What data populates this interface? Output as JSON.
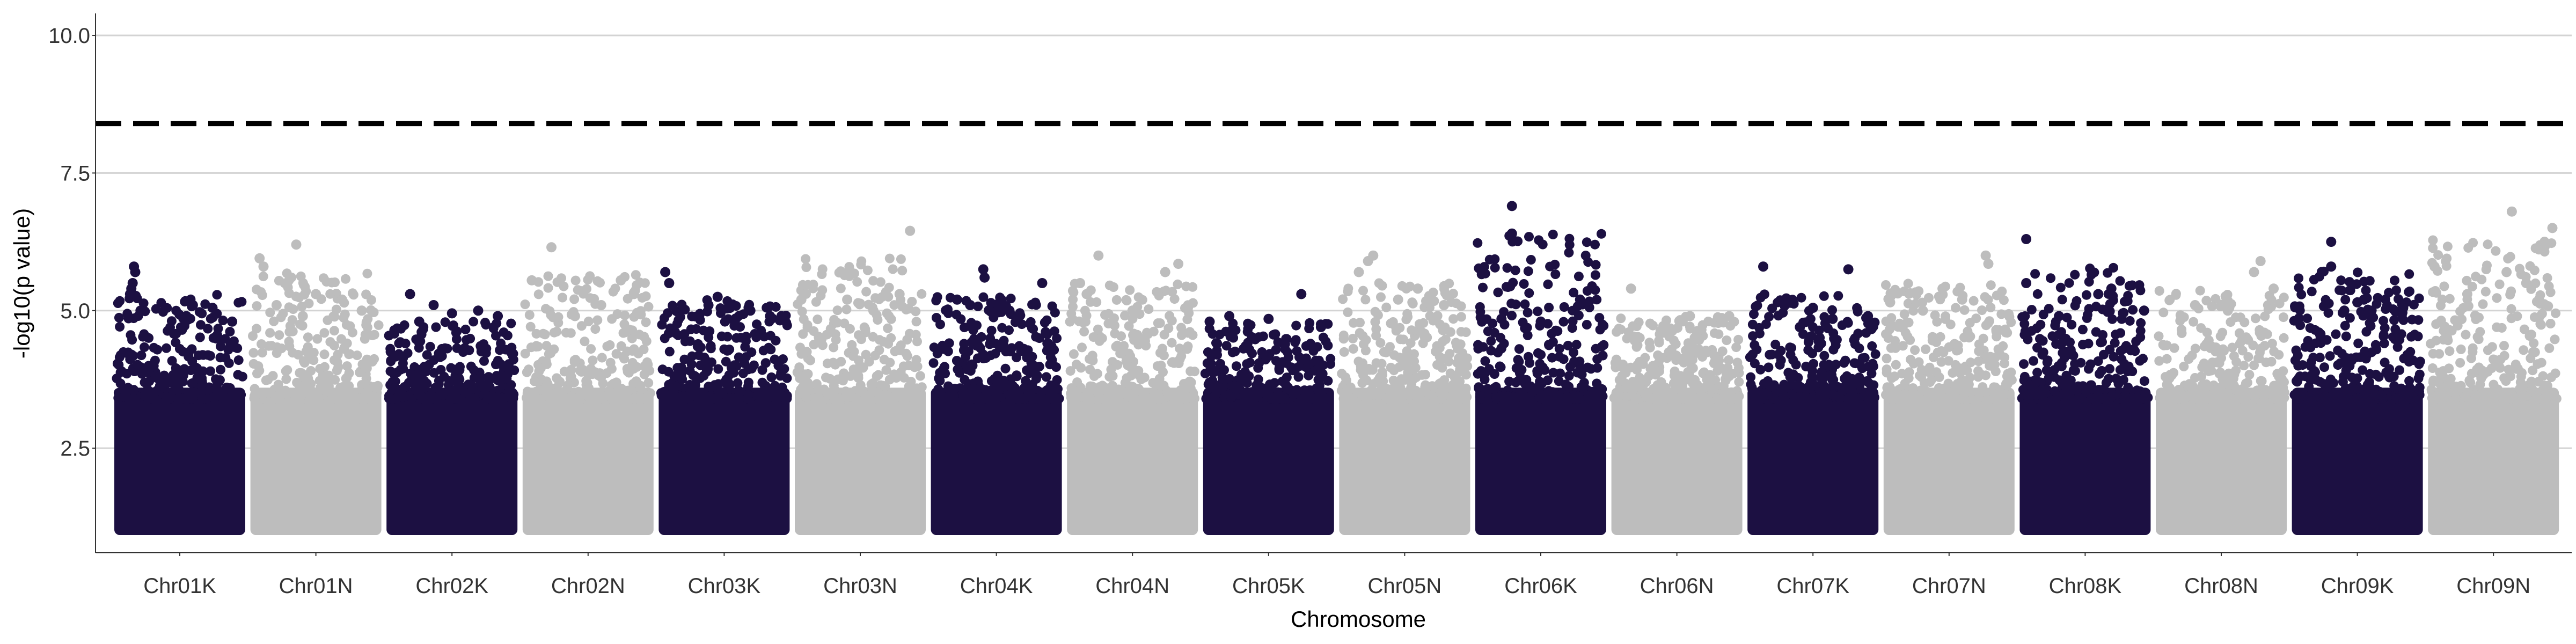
{
  "chart_data": {
    "type": "scatter",
    "subtype": "manhattan",
    "title": "",
    "xlabel": "Chromosome",
    "ylabel": "-log10(p value)",
    "ylim": [
      0.6,
      10.4
    ],
    "y_ticks": [
      2.5,
      5.0,
      7.5,
      10.0
    ],
    "y_tick_labels": [
      "2.5",
      "5.0",
      "7.5",
      "10.0"
    ],
    "grid": "horizontal major lines",
    "legend": "none",
    "threshold": 8.4,
    "threshold_style": "dashed",
    "colors": {
      "dark": "#1c1042",
      "light": "#bdbdbd",
      "threshold": "#000000",
      "grid": "#d3d3d3",
      "axis": "#333333"
    },
    "categories": [
      "Chr01K",
      "Chr01N",
      "Chr02K",
      "Chr02N",
      "Chr03K",
      "Chr03N",
      "Chr04K",
      "Chr04N",
      "Chr05K",
      "Chr05N",
      "Chr06K",
      "Chr06N",
      "Chr07K",
      "Chr07N",
      "Chr08K",
      "Chr08N",
      "Chr09K",
      "Chr09N"
    ],
    "series": [
      {
        "category": "Chr01K",
        "color": "dark",
        "max": 5.8,
        "top_points": [
          [
            0.15,
            5.8
          ],
          [
            0.16,
            5.7
          ],
          [
            0.14,
            5.5
          ],
          [
            0.13,
            5.4
          ],
          [
            0.12,
            5.3
          ],
          [
            0.6,
            5.1
          ],
          [
            0.75,
            5.05
          ],
          [
            0.2,
            5.0
          ],
          [
            0.55,
            4.9
          ],
          [
            0.9,
            4.8
          ]
        ]
      },
      {
        "category": "Chr01N",
        "color": "light",
        "max": 6.2,
        "top_points": [
          [
            0.35,
            6.2
          ],
          [
            0.07,
            5.95
          ],
          [
            0.1,
            5.8
          ],
          [
            0.5,
            5.3
          ],
          [
            0.7,
            5.2
          ],
          [
            0.2,
            5.1
          ],
          [
            0.85,
            5.0
          ],
          [
            0.4,
            4.9
          ]
        ]
      },
      {
        "category": "Chr02K",
        "color": "dark",
        "max": 5.3,
        "top_points": [
          [
            0.18,
            5.3
          ],
          [
            0.36,
            5.1
          ],
          [
            0.7,
            5.0
          ],
          [
            0.5,
            4.95
          ],
          [
            0.85,
            4.9
          ],
          [
            0.25,
            4.8
          ]
        ]
      },
      {
        "category": "Chr02N",
        "color": "light",
        "max": 6.15,
        "top_points": [
          [
            0.22,
            6.15
          ],
          [
            0.07,
            5.55
          ],
          [
            0.75,
            5.55
          ],
          [
            0.85,
            5.3
          ],
          [
            0.6,
            5.1
          ],
          [
            0.4,
            4.9
          ]
        ]
      },
      {
        "category": "Chr03K",
        "color": "dark",
        "max": 5.7,
        "top_points": [
          [
            0.05,
            5.7
          ],
          [
            0.08,
            5.5
          ],
          [
            0.45,
            5.25
          ],
          [
            0.38,
            5.1
          ],
          [
            0.7,
            5.0
          ],
          [
            0.85,
            4.9
          ]
        ]
      },
      {
        "category": "Chr03N",
        "color": "light",
        "max": 6.45,
        "top_points": [
          [
            0.88,
            6.45
          ],
          [
            0.05,
            5.2
          ],
          [
            0.8,
            5.3
          ],
          [
            0.4,
            5.2
          ],
          [
            0.6,
            5.0
          ]
        ]
      },
      {
        "category": "Chr04K",
        "color": "dark",
        "max": 5.75,
        "top_points": [
          [
            0.4,
            5.75
          ],
          [
            0.41,
            5.6
          ],
          [
            0.85,
            5.5
          ],
          [
            0.2,
            5.2
          ],
          [
            0.3,
            5.1
          ],
          [
            0.6,
            5.0
          ]
        ]
      },
      {
        "category": "Chr04N",
        "color": "light",
        "max": 6.0,
        "top_points": [
          [
            0.24,
            6.0
          ],
          [
            0.85,
            5.85
          ],
          [
            0.75,
            5.7
          ],
          [
            0.1,
            5.5
          ],
          [
            0.15,
            5.3
          ],
          [
            0.5,
            5.0
          ]
        ]
      },
      {
        "category": "Chr05K",
        "color": "dark",
        "max": 5.3,
        "top_points": [
          [
            0.75,
            5.3
          ],
          [
            0.2,
            4.9
          ],
          [
            0.5,
            4.85
          ],
          [
            0.05,
            4.8
          ],
          [
            0.9,
            4.7
          ]
        ]
      },
      {
        "category": "Chr05N",
        "color": "light",
        "max": 6.0,
        "top_points": [
          [
            0.26,
            6.0
          ],
          [
            0.22,
            5.9
          ],
          [
            0.15,
            5.7
          ],
          [
            0.6,
            5.4
          ],
          [
            0.45,
            5.2
          ],
          [
            0.8,
            5.1
          ]
        ]
      },
      {
        "category": "Chr06K",
        "color": "dark",
        "max": 6.9,
        "top_points": [
          [
            0.28,
            6.9
          ],
          [
            0.28,
            6.4
          ],
          [
            0.8,
            5.2
          ],
          [
            0.2,
            4.85
          ],
          [
            0.5,
            4.8
          ]
        ]
      },
      {
        "category": "Chr06N",
        "color": "light",
        "max": 5.4,
        "top_points": [
          [
            0.15,
            5.4
          ],
          [
            0.6,
            4.9
          ],
          [
            0.9,
            4.9
          ],
          [
            0.4,
            4.6
          ]
        ]
      },
      {
        "category": "Chr07K",
        "color": "dark",
        "max": 5.8,
        "top_points": [
          [
            0.12,
            5.8
          ],
          [
            0.77,
            5.75
          ],
          [
            0.5,
            5.05
          ],
          [
            0.92,
            4.9
          ],
          [
            0.65,
            4.85
          ],
          [
            0.4,
            4.7
          ]
        ]
      },
      {
        "category": "Chr07N",
        "color": "light",
        "max": 6.0,
        "top_points": [
          [
            0.78,
            6.0
          ],
          [
            0.8,
            5.85
          ],
          [
            0.05,
            5.15
          ],
          [
            0.45,
            5.4
          ],
          [
            0.6,
            5.2
          ],
          [
            0.3,
            5.0
          ]
        ]
      },
      {
        "category": "Chr08K",
        "color": "dark",
        "max": 6.3,
        "top_points": [
          [
            0.05,
            6.3
          ],
          [
            0.05,
            5.5
          ],
          [
            0.7,
            5.4
          ],
          [
            0.6,
            5.3
          ],
          [
            0.95,
            5.0
          ],
          [
            0.3,
            4.9
          ]
        ]
      },
      {
        "category": "Chr08N",
        "color": "light",
        "max": 5.9,
        "top_points": [
          [
            0.8,
            5.9
          ],
          [
            0.75,
            5.7
          ],
          [
            0.9,
            5.4
          ],
          [
            0.3,
            5.1
          ],
          [
            0.55,
            5.0
          ]
        ]
      },
      {
        "category": "Chr09K",
        "color": "dark",
        "max": 6.25,
        "top_points": [
          [
            0.3,
            6.25
          ],
          [
            0.3,
            5.8
          ],
          [
            0.5,
            5.15
          ],
          [
            0.55,
            5.2
          ],
          [
            0.85,
            5.05
          ],
          [
            0.4,
            5.0
          ]
        ]
      },
      {
        "category": "Chr09N",
        "color": "light",
        "max": 6.8,
        "top_points": [
          [
            0.64,
            6.8
          ],
          [
            0.95,
            6.5
          ],
          [
            0.05,
            5.8
          ],
          [
            0.6,
            5.7
          ],
          [
            0.75,
            5.5
          ],
          [
            0.3,
            5.3
          ]
        ]
      }
    ],
    "baseline_min": 1.0
  }
}
